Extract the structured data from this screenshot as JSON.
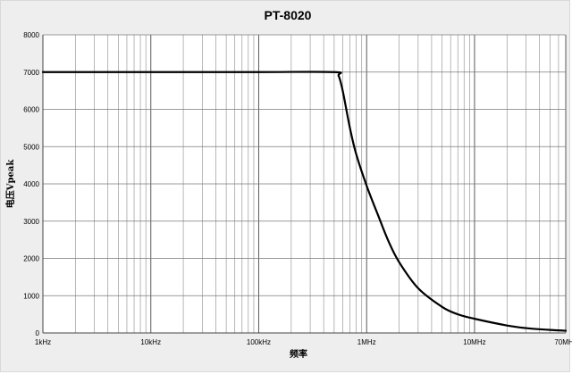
{
  "chart_data": {
    "type": "line",
    "title": "PT-8020",
    "xlabel": "频率",
    "ylabel": "电压Vpeak",
    "x_scale": "log",
    "xlim": [
      1000,
      70000000
    ],
    "ylim": [
      0,
      8000
    ],
    "x_ticks": [
      {
        "value": 1000,
        "label": "1kHz"
      },
      {
        "value": 10000,
        "label": "10kHz"
      },
      {
        "value": 100000,
        "label": "100kHz"
      },
      {
        "value": 1000000,
        "label": "1MHz"
      },
      {
        "value": 10000000,
        "label": "10MHz"
      },
      {
        "value": 70000000,
        "label": "70MHz"
      }
    ],
    "y_ticks": [
      0,
      1000,
      2000,
      3000,
      4000,
      5000,
      6000,
      7000,
      8000
    ],
    "grid": true,
    "legend": "none",
    "line_color": "#000000",
    "background_color": "#eeeeee",
    "series": [
      {
        "x": [
          1000,
          10000,
          100000,
          500000,
          550000,
          600000,
          700000,
          800000,
          1000000,
          1300000,
          1600000,
          2000000,
          3000000,
          5000000,
          7000000,
          10000000,
          20000000,
          30000000,
          50000000,
          70000000
        ],
        "values": [
          7000,
          7000,
          7000,
          7000,
          6900,
          6500,
          5500,
          4800,
          3950,
          3100,
          2450,
          1900,
          1200,
          700,
          500,
          380,
          200,
          130,
          80,
          60
        ]
      }
    ]
  }
}
